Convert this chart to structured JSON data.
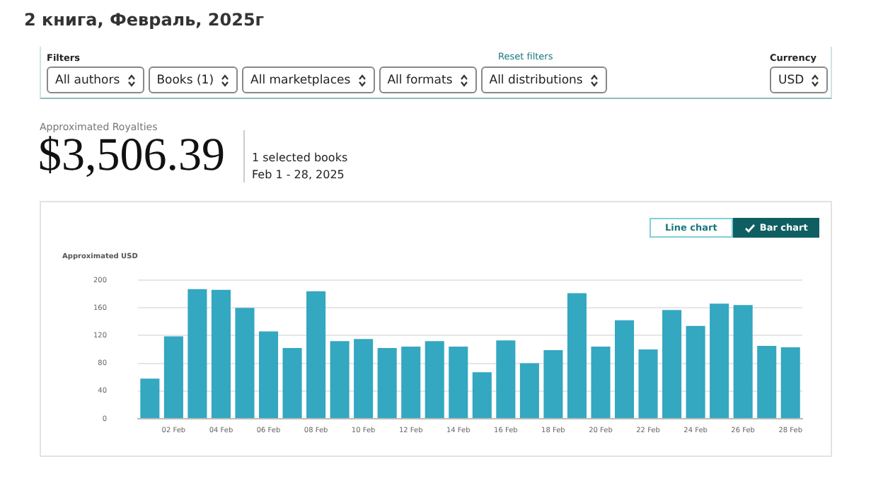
{
  "chart_data": {
    "type": "bar",
    "title": "2 книга, Февраль, 2025г",
    "ylabel": "Approximated USD",
    "annotations": [
      "Filters",
      "Reset filters",
      "All authors",
      "Books (1)",
      "All marketplaces",
      "All formats",
      "All distributions",
      "Currency",
      "USD",
      "Approximated Royalties",
      "$3,506.39",
      "1 selected books",
      "Feb 1 - 28, 2025",
      "Line chart",
      "Bar chart"
    ],
    "categories": [
      null,
      "02 Feb",
      null,
      "04 Feb",
      null,
      "06 Feb",
      null,
      "08 Feb",
      null,
      "10 Feb",
      null,
      "12 Feb",
      null,
      "14 Feb",
      null,
      "16 Feb",
      null,
      "18 Feb",
      null,
      "20 Feb",
      null,
      "22 Feb",
      null,
      "24 Feb",
      null,
      "26 Feb",
      null,
      "28 Feb"
    ],
    "values": [
      58,
      119,
      187,
      186,
      160,
      126,
      102,
      184,
      112,
      115,
      102,
      104,
      112,
      104,
      67,
      113,
      80,
      99,
      181,
      104,
      142,
      100,
      157,
      134,
      166,
      164,
      105,
      103
    ],
    "color": "#34a7c1",
    "ylim": [
      0,
      200
    ],
    "yticks": [
      0,
      40,
      80,
      120,
      160,
      200
    ],
    "grid": "y",
    "legend": false
  }
}
